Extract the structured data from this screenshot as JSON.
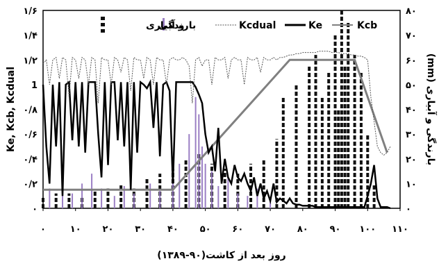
{
  "chart_data": {
    "type": "line",
    "xlabel": "روز بعد از کاشت(۹۰-۱۳۸۹)",
    "ylabel_left": "Ke, Kcb, Kcdual",
    "ylabel_right": "بارندگی و آبیاری (mm)",
    "xlim": [
      0,
      110
    ],
    "ylim_left": [
      0,
      1.6
    ],
    "ylim_right": [
      0,
      80
    ],
    "x_ticks": [
      0,
      10,
      20,
      30,
      40,
      50,
      60,
      70,
      80,
      90,
      100,
      110
    ],
    "x_tick_labels": [
      "۰",
      "۱۰",
      "۲۰",
      "۳۰",
      "۴۰",
      "۵۰",
      "۶۰",
      "۷۰",
      "۸۰",
      "۹۰",
      "۱۰۰",
      "۱۱۰"
    ],
    "y_left_ticks": [
      0,
      0.2,
      0.4,
      0.6,
      0.8,
      1,
      1.2,
      1.4,
      1.6
    ],
    "y_left_tick_labels": [
      "۰",
      "۰/۲",
      "۰/۴",
      "۰/۶",
      "۰/۸",
      "1",
      "۱/۲",
      "۱/۴",
      "۱/۶"
    ],
    "y_right_ticks": [
      0,
      10,
      20,
      30,
      40,
      50,
      60,
      70,
      80
    ],
    "y_right_tick_labels": [
      "۰",
      "۱۰",
      "۲۰",
      "۳۰",
      "۴۰",
      "۵۰",
      "۶۰",
      "۷۰",
      "۸۰"
    ],
    "legend": {
      "placement": "top",
      "entries": [
        {
          "label": "Kcb",
          "style": "gray-line"
        },
        {
          "label": "Ke",
          "style": "black-thick-line"
        },
        {
          "label": "Kcdual",
          "style": "dotted-line"
        },
        {
          "label": "بارندگی",
          "style": "purple-bar"
        },
        {
          "label": "و آبیاری",
          "style": "dashed-bar"
        }
      ]
    },
    "colors": {
      "kcb": "#808080",
      "ke": "#000000",
      "kcdual": "#555555",
      "rain": "#9b7fc4",
      "irrigation": "#111111"
    },
    "series": [
      {
        "name": "Kcb",
        "x": [
          0,
          40,
          76,
          96,
          106
        ],
        "y": [
          0.15,
          0.15,
          1.2,
          1.2,
          0.45
        ]
      },
      {
        "name": "Ke",
        "x": [
          0,
          1,
          2,
          3,
          4,
          5,
          6,
          7,
          8,
          9,
          10,
          11,
          12,
          13,
          14,
          15,
          16,
          17,
          18,
          19,
          20,
          21,
          22,
          23,
          24,
          25,
          26,
          27,
          28,
          29,
          30,
          31,
          32,
          33,
          34,
          35,
          36,
          37,
          38,
          39,
          40,
          41,
          42,
          43,
          44,
          45,
          46,
          47,
          48,
          49,
          50,
          51,
          52,
          53,
          54,
          55,
          56,
          57,
          58,
          59,
          60,
          61,
          62,
          63,
          64,
          65,
          66,
          67,
          68,
          69,
          70,
          71,
          72,
          73,
          74,
          75,
          76,
          77,
          78,
          79,
          80,
          81,
          82,
          83,
          84,
          85,
          86,
          87,
          88,
          89,
          90,
          91,
          92,
          93,
          94,
          95,
          96,
          97,
          98,
          99,
          100,
          101,
          102,
          103,
          104,
          105,
          106,
          107
        ],
        "y": [
          1.0,
          0.5,
          0.2,
          1.0,
          0.5,
          1.02,
          0.1,
          1.0,
          1.02,
          0.55,
          1.02,
          0.5,
          1.02,
          0.45,
          1.02,
          1.02,
          1.02,
          0.6,
          0.25,
          1.02,
          0.35,
          1.02,
          1.02,
          0.55,
          1.02,
          0.5,
          1.02,
          0.15,
          1.02,
          0.45,
          1.02,
          1.0,
          0.97,
          1.02,
          0.65,
          1.02,
          0.42,
          1.0,
          1.02,
          0.95,
          0.2,
          1.02,
          1.02,
          1.02,
          1.02,
          1.02,
          1.02,
          0.98,
          0.92,
          0.85,
          0.6,
          0.45,
          0.5,
          0.3,
          0.65,
          0.2,
          0.4,
          0.25,
          0.2,
          0.35,
          0.25,
          0.22,
          0.28,
          0.2,
          0.14,
          0.25,
          0.1,
          0.2,
          0.08,
          0.14,
          0.06,
          0.2,
          0.05,
          0.08,
          0.06,
          0.04,
          0.08,
          0.04,
          0.03,
          0.03,
          0.02,
          0.02,
          0.02,
          0.02,
          0.01,
          0.01,
          0.01,
          0.01,
          0.01,
          0.01,
          0.01,
          0.01,
          0.01,
          0.01,
          0.01,
          0.01,
          0.01,
          0.01,
          0.01,
          0.01,
          0.1,
          0.2,
          0.35,
          0.08,
          0.01,
          0.01,
          0.01,
          0.0
        ]
      },
      {
        "name": "Kcdual",
        "x": [
          0,
          1,
          2,
          3,
          4,
          5,
          6,
          7,
          8,
          9,
          10,
          11,
          12,
          13,
          14,
          15,
          16,
          17,
          18,
          19,
          20,
          21,
          22,
          23,
          24,
          25,
          26,
          27,
          28,
          29,
          30,
          31,
          32,
          33,
          34,
          35,
          36,
          37,
          38,
          39,
          40,
          41,
          42,
          43,
          44,
          45,
          46,
          47,
          48,
          49,
          50,
          51,
          52,
          53,
          54,
          55,
          56,
          57,
          58,
          59,
          60,
          61,
          62,
          63,
          64,
          65,
          66,
          67,
          68,
          69,
          70,
          71,
          72,
          73,
          74,
          75,
          76,
          77,
          78,
          79,
          80,
          81,
          82,
          83,
          84,
          85,
          86,
          87,
          88,
          89,
          90,
          91,
          92,
          93,
          94,
          95,
          96,
          97,
          98,
          99,
          100,
          101,
          102,
          103,
          104,
          105,
          106,
          107
        ],
        "y": [
          1.17,
          1.2,
          1.0,
          1.2,
          1.22,
          1.05,
          1.22,
          1.2,
          0.9,
          1.22,
          1.2,
          1.05,
          1.22,
          1.2,
          1.0,
          1.22,
          1.2,
          0.85,
          1.22,
          1.2,
          1.2,
          1.0,
          1.22,
          1.2,
          1.1,
          1.22,
          1.2,
          0.95,
          1.22,
          1.2,
          1.2,
          1.05,
          1.22,
          1.2,
          1.0,
          1.22,
          1.2,
          1.2,
          1.0,
          1.2,
          1.22,
          1.2,
          1.2,
          1.22,
          1.2,
          1.15,
          0.85,
          1.2,
          1.22,
          1.15,
          1.2,
          1.2,
          1.0,
          1.22,
          1.2,
          1.2,
          1.22,
          1.05,
          1.2,
          1.22,
          1.2,
          1.2,
          1.0,
          1.22,
          1.2,
          1.2,
          1.22,
          1.1,
          1.22,
          1.2,
          1.2,
          1.22,
          1.2,
          1.22,
          1.22,
          1.23,
          1.24,
          1.24,
          1.25,
          1.25,
          1.26,
          1.26,
          1.26,
          1.26,
          1.26,
          1.27,
          1.27,
          1.27,
          1.27,
          1.26,
          1.26,
          1.26,
          1.25,
          1.25,
          1.25,
          1.24,
          1.24,
          1.23,
          1.23,
          1.22,
          1.2,
          0.9,
          0.7,
          0.5,
          0.45,
          0.43,
          0.45,
          0.5
        ]
      }
    ],
    "bars": [
      {
        "name": "بارندگی",
        "x": [
          2,
          6,
          9,
          12,
          15,
          18,
          22,
          25,
          28,
          33,
          36,
          40,
          42,
          45,
          47,
          48,
          49,
          50,
          52,
          54,
          57,
          60,
          63,
          66,
          70
        ],
        "y": [
          8,
          12,
          6,
          10,
          14,
          8,
          5,
          9,
          6,
          10,
          7,
          14,
          18,
          30,
          45,
          38,
          25,
          18,
          15,
          9,
          12,
          6,
          5,
          8,
          4
        ]
      },
      {
        "name": "و آبیاری",
        "x": [
          0,
          4,
          8,
          12,
          16,
          20,
          24,
          28,
          32,
          36,
          40,
          44,
          48,
          52,
          56,
          60,
          64,
          68,
          72,
          74,
          78,
          82,
          84,
          86,
          88,
          90,
          91,
          92,
          93,
          94,
          96,
          98,
          100,
          102
        ],
        "y": [
          5,
          6,
          6,
          5,
          7,
          8,
          10,
          8,
          12,
          14,
          16,
          20,
          22,
          18,
          16,
          14,
          18,
          20,
          28,
          45,
          50,
          58,
          62,
          45,
          55,
          70,
          40,
          80,
          58,
          75,
          62,
          55,
          30,
          10
        ]
      }
    ]
  }
}
